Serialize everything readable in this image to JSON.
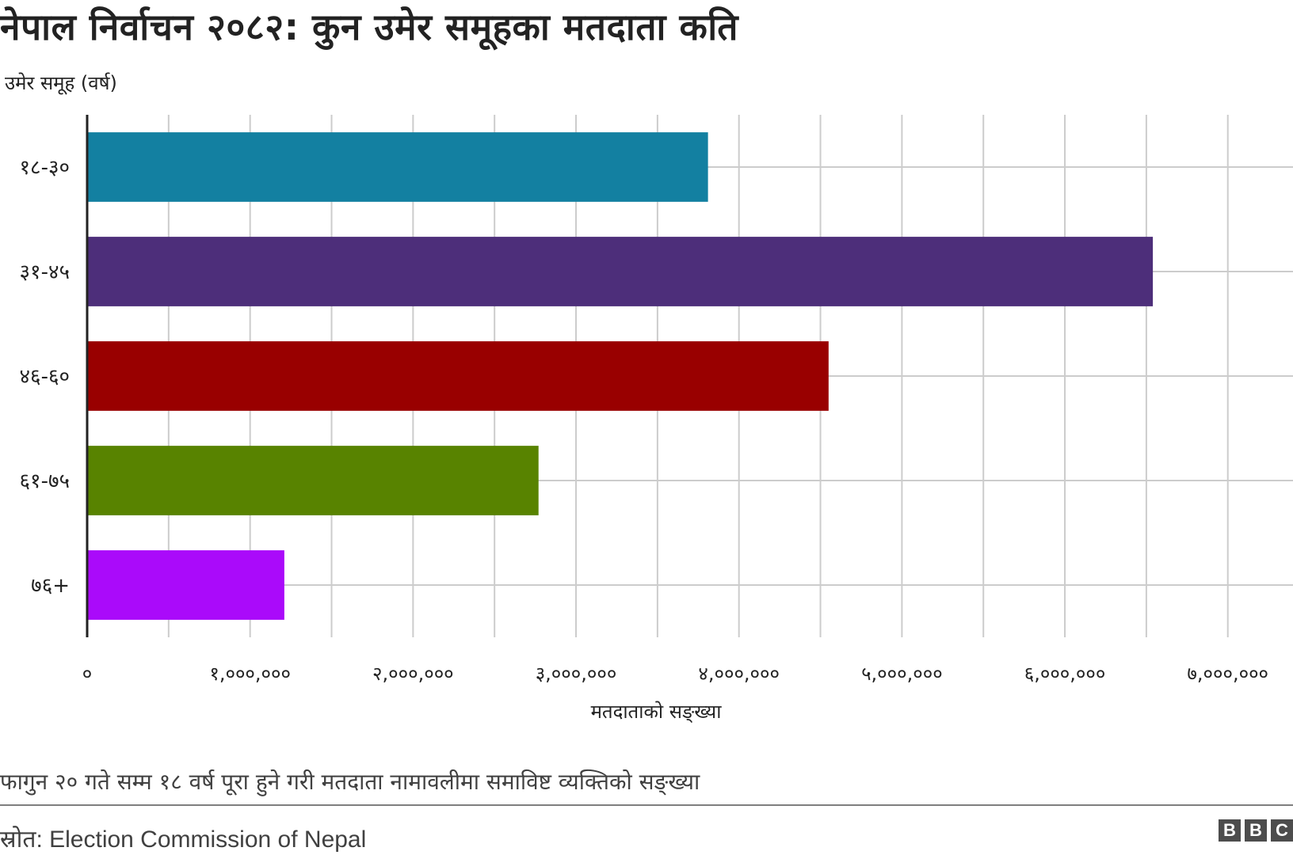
{
  "title": "नेपाल निर्वाचन २०८२: कुन उमेर समूहका मतदाता कति",
  "footnote": "फागुन २० गते सम्म १८ वर्ष पूरा हुने गरी मतदाता नामावलीमा समाविष्ट व्यक्तिको सङ्ख्या",
  "source": "स्रोत: Election Commission of Nepal",
  "brand": [
    "B",
    "B",
    "C"
  ],
  "chart_data": {
    "type": "bar",
    "orientation": "horizontal",
    "title": "नेपाल निर्वाचन २०८२: कुन उमेर समूहका मतदाता कति",
    "ylabel": "उमेर समूह (वर्ष)",
    "xlabel": "मतदाताको सङ्ख्या",
    "categories": [
      "१८-३०",
      "३१-४५",
      "४६-६०",
      "६१-७५",
      "७६+"
    ],
    "values": [
      3810000,
      6540000,
      4550000,
      2770000,
      1210000
    ],
    "colors": [
      "#1380A1",
      "#4D2E7A",
      "#990000",
      "#588300",
      "#AA0AFA"
    ],
    "xlim": [
      0,
      7400000
    ],
    "xticks": [
      0,
      1000000,
      2000000,
      3000000,
      4000000,
      5000000,
      6000000,
      7000000
    ],
    "xtick_labels": [
      "०",
      "१,०००,०००",
      "२,०००,०००",
      "३,०००,०००",
      "४,०००,०००",
      "५,०००,०००",
      "६,०००,०००",
      "७,०००,०००"
    ],
    "grid": true,
    "legend": "none"
  }
}
